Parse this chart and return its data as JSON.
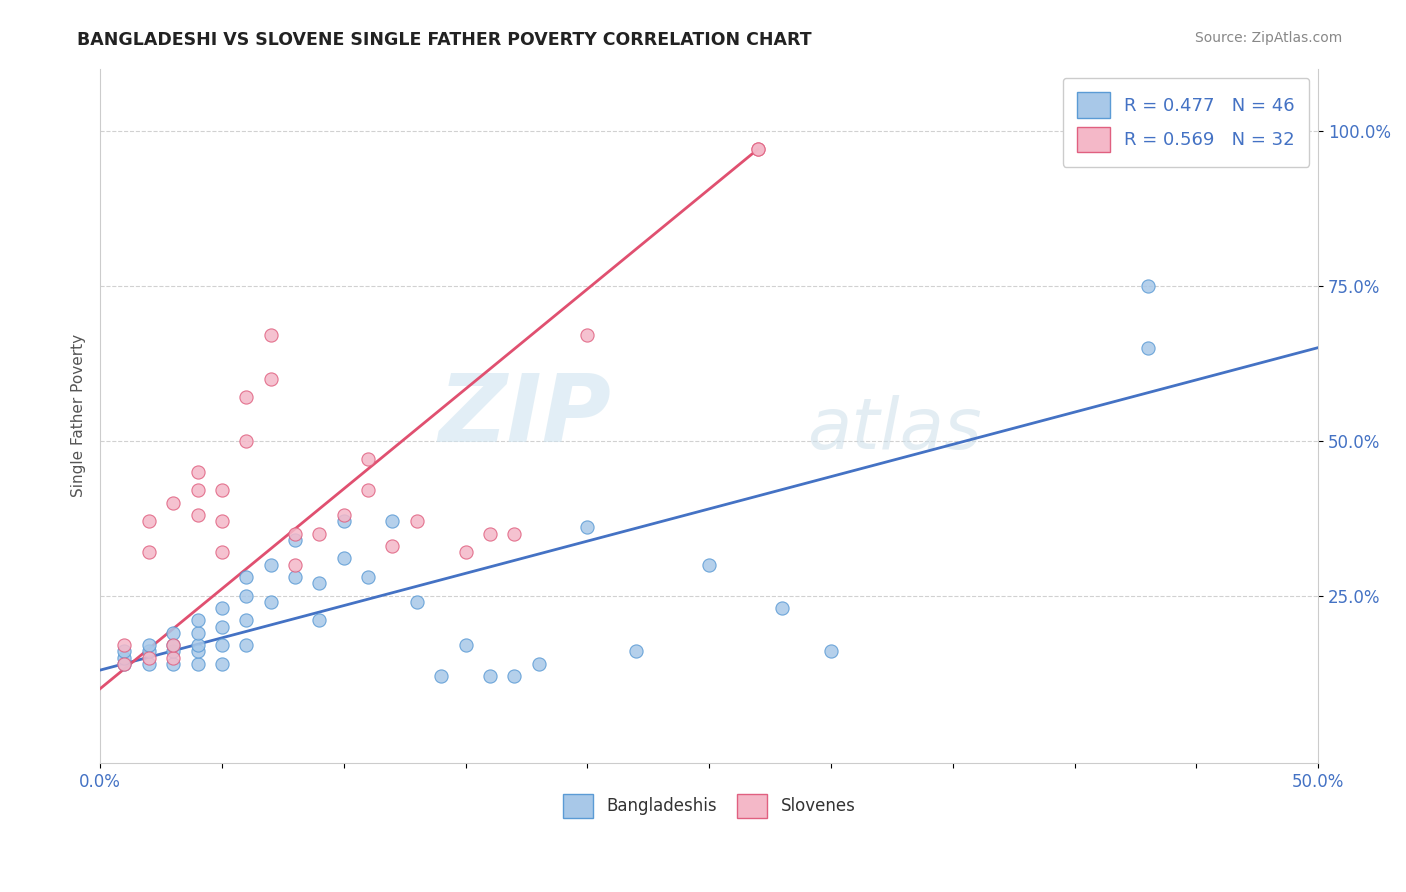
{
  "title": "BANGLADESHI VS SLOVENE SINGLE FATHER POVERTY CORRELATION CHART",
  "source": "Source: ZipAtlas.com",
  "ylabel": "Single Father Poverty",
  "xlim": [
    0.0,
    0.5
  ],
  "ylim": [
    -0.02,
    1.1
  ],
  "ytick_positions": [
    0.25,
    0.5,
    0.75,
    1.0
  ],
  "ytick_labels": [
    "25.0%",
    "50.0%",
    "75.0%",
    "100.0%"
  ],
  "xtick_positions": [
    0.0,
    0.05,
    0.1,
    0.15,
    0.2,
    0.25,
    0.3,
    0.35,
    0.4,
    0.45,
    0.5
  ],
  "legend_labels_bottom": [
    "Bangladeshis",
    "Slovenes"
  ],
  "blue_color": "#a8c8e8",
  "blue_edge": "#5b9bd5",
  "pink_color": "#f4b8c8",
  "pink_edge": "#e06080",
  "line_blue": "#4472c4",
  "line_pink": "#e05070",
  "watermark_zip": "ZIP",
  "watermark_atlas": "atlas",
  "tick_color": "#4472c4",
  "source_color": "#888888",
  "title_color": "#222222",
  "axis_label_color": "#555555",
  "grid_color": "#cccccc",
  "blue_scatter_x": [
    0.01,
    0.01,
    0.01,
    0.02,
    0.02,
    0.02,
    0.03,
    0.03,
    0.03,
    0.03,
    0.04,
    0.04,
    0.04,
    0.04,
    0.04,
    0.05,
    0.05,
    0.05,
    0.05,
    0.06,
    0.06,
    0.06,
    0.06,
    0.07,
    0.07,
    0.08,
    0.08,
    0.09,
    0.09,
    0.1,
    0.1,
    0.11,
    0.12,
    0.13,
    0.14,
    0.15,
    0.16,
    0.17,
    0.18,
    0.2,
    0.22,
    0.25,
    0.28,
    0.3,
    0.43,
    0.43
  ],
  "blue_scatter_y": [
    0.14,
    0.15,
    0.16,
    0.14,
    0.16,
    0.17,
    0.14,
    0.16,
    0.17,
    0.19,
    0.14,
    0.16,
    0.17,
    0.19,
    0.21,
    0.14,
    0.17,
    0.2,
    0.23,
    0.17,
    0.21,
    0.25,
    0.28,
    0.24,
    0.3,
    0.28,
    0.34,
    0.21,
    0.27,
    0.31,
    0.37,
    0.28,
    0.37,
    0.24,
    0.12,
    0.17,
    0.12,
    0.12,
    0.14,
    0.36,
    0.16,
    0.3,
    0.23,
    0.16,
    0.65,
    0.75
  ],
  "pink_scatter_x": [
    0.01,
    0.01,
    0.02,
    0.02,
    0.02,
    0.03,
    0.03,
    0.03,
    0.04,
    0.04,
    0.04,
    0.05,
    0.05,
    0.05,
    0.06,
    0.06,
    0.07,
    0.07,
    0.08,
    0.08,
    0.09,
    0.1,
    0.11,
    0.11,
    0.12,
    0.13,
    0.15,
    0.16,
    0.17,
    0.2,
    0.27,
    0.27
  ],
  "pink_scatter_y": [
    0.14,
    0.17,
    0.15,
    0.32,
    0.37,
    0.15,
    0.17,
    0.4,
    0.38,
    0.42,
    0.45,
    0.32,
    0.37,
    0.42,
    0.5,
    0.57,
    0.6,
    0.67,
    0.3,
    0.35,
    0.35,
    0.38,
    0.42,
    0.47,
    0.33,
    0.37,
    0.32,
    0.35,
    0.35,
    0.67,
    0.97,
    0.97
  ],
  "blue_line_x0": 0.0,
  "blue_line_y0": 0.13,
  "blue_line_x1": 0.5,
  "blue_line_y1": 0.65,
  "pink_line_x0": 0.0,
  "pink_line_y0": 0.1,
  "pink_line_x1": 0.27,
  "pink_line_y1": 0.97
}
